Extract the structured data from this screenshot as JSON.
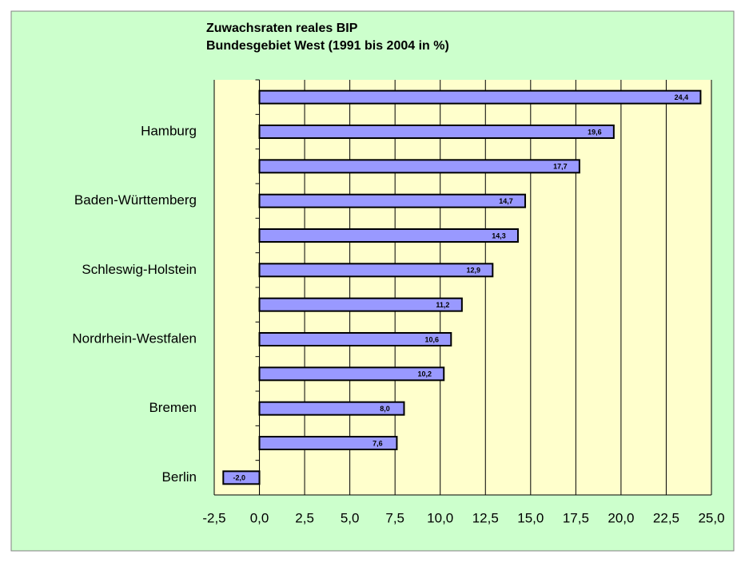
{
  "chart_data": {
    "type": "hbar",
    "title": "Zuwachsraten reales BIP",
    "subtitle": "Bundesgebiet West (1991 bis 2004 in %)",
    "categories": [
      null,
      "Hamburg",
      null,
      "Baden-Württemberg",
      null,
      "Schleswig-Holstein",
      null,
      "Nordrhein-Westfalen",
      null,
      "Bremen",
      null,
      "Berlin"
    ],
    "values": [
      24.4,
      19.6,
      17.7,
      14.7,
      14.3,
      12.9,
      11.2,
      10.6,
      10.2,
      8.0,
      7.6,
      -2.0
    ],
    "value_labels": [
      "24,4",
      "19,6",
      "17,7",
      "14,7",
      "14,3",
      "12,9",
      "11,2",
      "10,6",
      "10,2",
      "8,0",
      "7,6",
      "-2,0"
    ],
    "color": "#9999ff",
    "xlim": [
      -2.5,
      25.0
    ],
    "xticks": [
      {
        "value": -2.5,
        "label": "-2,5"
      },
      {
        "value": 0,
        "label": "0,0"
      },
      {
        "value": 2.5,
        "label": "2,5"
      },
      {
        "value": 5,
        "label": "5,0"
      },
      {
        "value": 7.5,
        "label": "7,5"
      },
      {
        "value": 10,
        "label": "10,0"
      },
      {
        "value": 12.5,
        "label": "12,5"
      },
      {
        "value": 15,
        "label": "15,0"
      },
      {
        "value": 17.5,
        "label": "17,5"
      },
      {
        "value": 20,
        "label": "20,0"
      },
      {
        "value": 22.5,
        "label": "22,5"
      },
      {
        "value": 25,
        "label": "25,0"
      }
    ],
    "grid": true
  }
}
